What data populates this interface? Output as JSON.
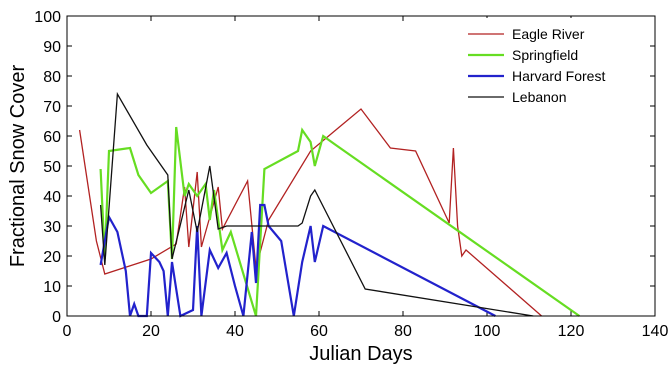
{
  "chart_data": {
    "type": "line",
    "title": "",
    "xlabel": "Julian Days",
    "ylabel": "Fractional Snow Cover",
    "xlim": [
      0,
      140
    ],
    "ylim": [
      0,
      100
    ],
    "xticks": [
      0,
      20,
      40,
      60,
      80,
      100,
      120,
      140
    ],
    "yticks": [
      0,
      10,
      20,
      30,
      40,
      50,
      60,
      70,
      80,
      90,
      100
    ],
    "grid": false,
    "legend_position": "top-right",
    "series": [
      {
        "name": "Eagle River",
        "color": "#b22222",
        "x": [
          3,
          7,
          9,
          20,
          26,
          28,
          29,
          31,
          32,
          36,
          37,
          43,
          45,
          48,
          58,
          70,
          77,
          83,
          91,
          92,
          93,
          94,
          95,
          113
        ],
        "y": [
          62,
          25,
          14,
          19,
          24,
          43,
          23,
          48,
          23,
          43,
          29,
          45,
          16,
          32,
          55,
          69,
          56,
          55,
          31,
          56,
          30,
          20,
          22,
          0
        ]
      },
      {
        "name": "Springfield",
        "color": "#66dd22",
        "x": [
          8,
          9,
          10,
          15,
          17,
          20,
          24,
          25,
          26,
          28,
          29,
          31,
          33,
          34,
          35,
          37,
          39,
          45,
          47,
          55,
          56,
          58,
          59,
          61,
          64,
          122
        ],
        "y": [
          49,
          19,
          55,
          56,
          47,
          41,
          45,
          19,
          63,
          40,
          44,
          40,
          44,
          32,
          42,
          22,
          28,
          0,
          49,
          55,
          62,
          58,
          50,
          60,
          57,
          0
        ]
      },
      {
        "name": "Harvard Forest",
        "color": "#2222cc",
        "x": [
          8,
          10,
          12,
          14,
          15,
          16,
          17,
          19,
          20,
          22,
          23,
          24,
          25,
          27,
          30,
          31,
          32,
          34,
          36,
          38,
          40,
          42,
          44,
          45,
          46,
          47,
          48,
          51,
          54,
          56,
          58,
          59,
          61,
          102
        ],
        "y": [
          17,
          33,
          28,
          15,
          0,
          4,
          0,
          0,
          21,
          18,
          15,
          0,
          18,
          0,
          2,
          30,
          0,
          22,
          16,
          21,
          10,
          0,
          28,
          11,
          37,
          37,
          30,
          25,
          0,
          18,
          30,
          18,
          30,
          0
        ]
      },
      {
        "name": "Lebanon",
        "color": "#111111",
        "x": [
          8,
          9,
          12,
          19,
          24,
          25,
          29,
          31,
          34,
          36,
          38,
          41,
          54,
          55,
          56,
          58,
          59,
          71,
          111
        ],
        "y": [
          37,
          17,
          74,
          57,
          47,
          19,
          42,
          28,
          50,
          29,
          30,
          30,
          30,
          30,
          31,
          40,
          42,
          9,
          0
        ]
      }
    ]
  }
}
